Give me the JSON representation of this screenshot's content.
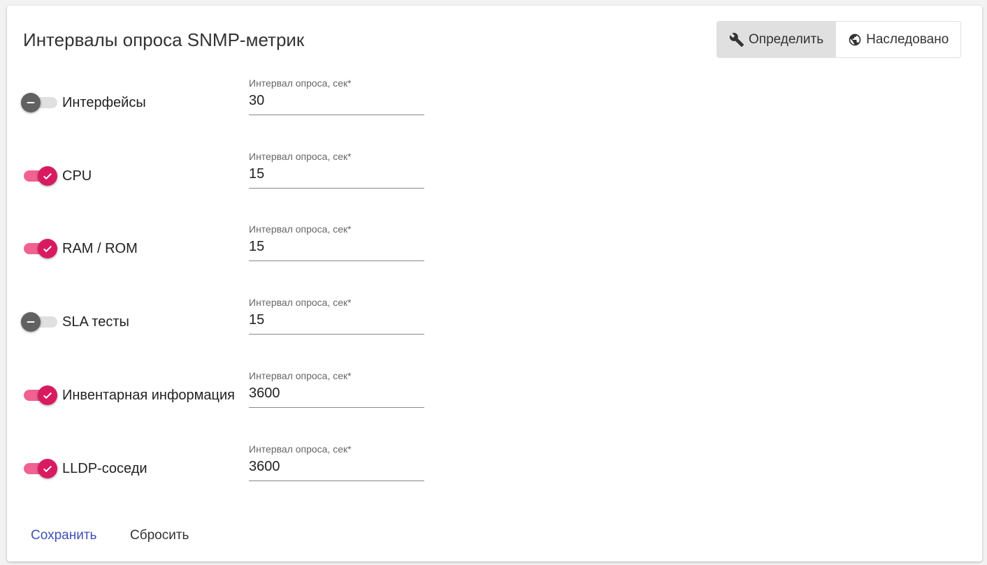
{
  "title": "Интервалы опроса SNMP-метрик",
  "mode": {
    "define_label": "Определить",
    "inherit_label": "Наследовано",
    "selected": "define",
    "define_icon": "wrench-icon",
    "inherit_icon": "globe-icon"
  },
  "field_label": "Интервал опроса, сек*",
  "rows": [
    {
      "label": "Интерфейсы",
      "enabled": false,
      "value": "30"
    },
    {
      "label": "CPU",
      "enabled": true,
      "value": "15"
    },
    {
      "label": "RAM / ROM",
      "enabled": true,
      "value": "15"
    },
    {
      "label": "SLA тесты",
      "enabled": false,
      "value": "15"
    },
    {
      "label": "Инвентарная информация",
      "enabled": true,
      "value": "3600"
    },
    {
      "label": "LLDP-соседи",
      "enabled": true,
      "value": "3600"
    }
  ],
  "actions": {
    "save_label": "Сохранить",
    "reset_label": "Сбросить"
  },
  "colors": {
    "accent": "#d81b60",
    "track_on": "#f06292",
    "primary_link": "#3f51b5"
  }
}
